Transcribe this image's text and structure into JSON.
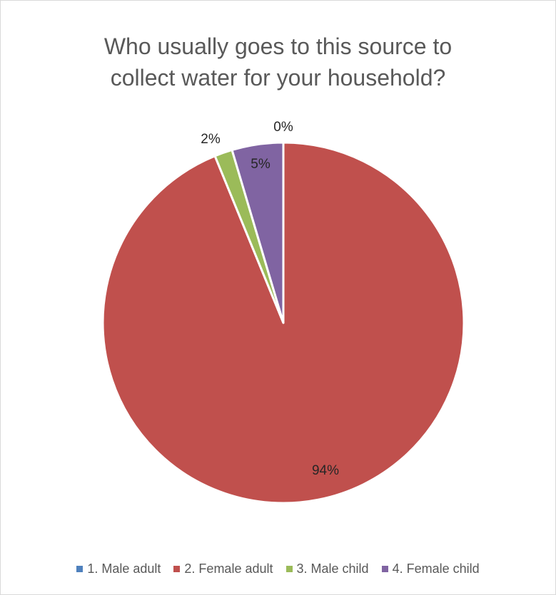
{
  "chart_data": {
    "type": "pie",
    "title": "Who usually goes to this source to\ncollect water for your household?",
    "slices": [
      {
        "name": "1. Male adult",
        "value": 0,
        "label": "0%",
        "color": "#4f81bd"
      },
      {
        "name": "2. Female adult",
        "value": 94,
        "label": "94%",
        "color": "#c0504d"
      },
      {
        "name": "3. Male child",
        "value": 1.6,
        "label": "2%",
        "color": "#9bbb59"
      },
      {
        "name": "4. Female child",
        "value": 4.6,
        "label": "5%",
        "color": "#8064a2"
      }
    ],
    "legend_position": "bottom"
  }
}
